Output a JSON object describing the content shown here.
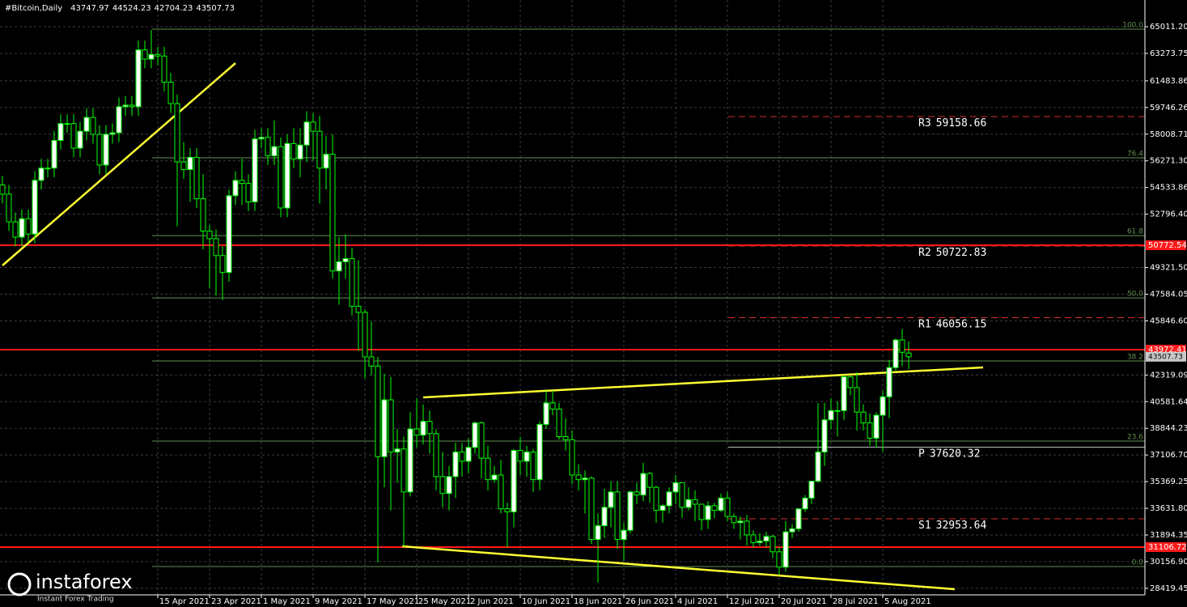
{
  "chart_data": {
    "type": "candlestick",
    "title": "#Bitcoin,Daily",
    "categories": [
      null,
      null,
      null,
      null,
      null,
      null,
      null,
      null,
      null,
      null,
      null,
      null,
      null,
      null,
      null,
      null,
      null,
      null,
      null,
      null,
      null,
      null,
      null,
      null,
      "15 Apr 2021",
      null,
      null,
      null,
      null,
      null,
      null,
      null,
      "23 Apr 2021",
      null,
      null,
      null,
      null,
      null,
      null,
      null,
      "1 May 2021",
      null,
      null,
      null,
      null,
      null,
      null,
      null,
      "9 May 2021",
      null,
      null,
      null,
      null,
      null,
      null,
      null,
      "17 May 2021",
      null,
      null,
      null,
      null,
      null,
      null,
      null,
      "25 May 2021",
      null,
      null,
      null,
      null,
      null,
      null,
      null,
      "2 Jun 2021",
      null,
      null,
      null,
      null,
      null,
      null,
      null,
      "10 Jun 2021",
      null,
      null,
      null,
      null,
      null,
      null,
      null,
      "18 Jun 2021",
      null,
      null,
      null,
      null,
      null,
      null,
      null,
      "26 Jun 2021",
      null,
      null,
      null,
      null,
      null,
      null,
      null,
      "4 Jul 2021",
      null,
      null,
      null,
      null,
      null,
      null,
      null,
      "12 Jul 2021",
      null,
      null,
      null,
      null,
      null,
      null,
      null,
      "20 Jul 2021",
      null,
      null,
      null,
      null,
      null,
      null,
      null,
      "28 Jul 2021",
      null,
      null,
      null,
      null,
      null,
      null,
      null,
      "5 Aug 2021",
      null,
      null,
      null,
      null
    ],
    "open": [
      54700,
      54100,
      52300,
      51300,
      52500,
      51500,
      55000,
      55800,
      55800,
      57600,
      58700,
      58700,
      57100,
      58200,
      59100,
      58000,
      56000,
      58000,
      58100,
      59800,
      59900,
      59800,
      63500,
      62900,
      63200,
      63100,
      61400,
      60000,
      56200,
      55700,
      56500,
      53800,
      51700,
      51200,
      50100,
      49000,
      54000,
      55000,
      54800,
      53600,
      57700,
      57800,
      56600,
      57200,
      53200,
      57400,
      56400,
      57300,
      58800,
      58200,
      55800,
      56700,
      49100,
      49700,
      49900,
      46800,
      46400,
      43500,
      42900,
      37000,
      40700,
      37300,
      37500,
      34700,
      38800,
      38400,
      39300,
      38500,
      35700,
      34600,
      35700,
      37300,
      36700,
      37600,
      39200,
      36900,
      35500,
      35800,
      33600,
      33400,
      37400,
      36700,
      37300,
      35500,
      39100,
      40500,
      40100,
      38300,
      38100,
      35800,
      35500,
      35600,
      31600,
      32500,
      33700,
      34700,
      31600,
      32200,
      34700,
      34500,
      35900,
      35000,
      33500,
      33800,
      34700,
      35300,
      33700,
      34200,
      33900,
      32900,
      33800,
      33500,
      34300,
      33100,
      32700,
      32800,
      31900,
      31400,
      31500,
      31800,
      30800,
      29800,
      32100,
      32300,
      33600,
      34300,
      35400,
      37300,
      39400,
      40000,
      40000,
      42200,
      41500,
      39900,
      39200,
      38200,
      39700,
      40900,
      42800,
      44600,
      43747.97
    ],
    "high": [
      55300,
      54700,
      52900,
      53100,
      53100,
      55600,
      56400,
      56400,
      58200,
      59300,
      59300,
      59300,
      58800,
      59700,
      59700,
      58600,
      58600,
      58700,
      60400,
      60500,
      60500,
      64100,
      64100,
      64800,
      63700,
      63700,
      62000,
      60600,
      57500,
      57100,
      57100,
      55400,
      52100,
      51800,
      50700,
      54400,
      55600,
      56400,
      55400,
      58300,
      58400,
      58400,
      58900,
      57800,
      58000,
      58400,
      58400,
      59500,
      59400,
      59200,
      57900,
      58000,
      51300,
      51500,
      50600,
      49800,
      46600,
      45800,
      43500,
      42400,
      42200,
      38800,
      38300,
      39900,
      40800,
      40400,
      40000,
      38800,
      37300,
      36400,
      37900,
      37900,
      38200,
      39300,
      39300,
      37700,
      36400,
      36800,
      34000,
      37500,
      38300,
      37700,
      37500,
      39300,
      41300,
      41300,
      40500,
      39500,
      38700,
      36500,
      36100,
      35700,
      33300,
      34900,
      35400,
      35400,
      32700,
      34800,
      35300,
      36600,
      36000,
      35100,
      33900,
      35000,
      35800,
      35300,
      35000,
      34800,
      33900,
      34100,
      34000,
      34600,
      34700,
      33300,
      33100,
      33200,
      32200,
      32000,
      32100,
      31900,
      31100,
      32800,
      32600,
      33600,
      34500,
      35400,
      40500,
      40500,
      40800,
      40600,
      42300,
      42300,
      42500,
      40400,
      39800,
      39900,
      41300,
      43300,
      44700,
      45300,
      44524.23
    ],
    "low": [
      53500,
      51700,
      50700,
      50700,
      50900,
      50900,
      54400,
      55200,
      55200,
      57000,
      58100,
      56500,
      56500,
      57600,
      57400,
      55400,
      55400,
      57400,
      57500,
      59200,
      59200,
      59200,
      62300,
      62300,
      62500,
      60800,
      59400,
      52000,
      55100,
      53600,
      53200,
      50500,
      48000,
      47500,
      47200,
      48400,
      53400,
      53400,
      53000,
      53000,
      57100,
      56000,
      56000,
      52600,
      52600,
      55800,
      55200,
      56200,
      56300,
      53500,
      54400,
      48600,
      46900,
      48600,
      46200,
      43900,
      42100,
      42300,
      30100,
      35000,
      33500,
      35300,
      31100,
      34400,
      37600,
      37800,
      37200,
      34800,
      33700,
      33500,
      34300,
      35700,
      35900,
      37200,
      35600,
      34800,
      35300,
      33300,
      31100,
      32400,
      35800,
      35700,
      34700,
      34800,
      38800,
      39700,
      38100,
      37400,
      35200,
      34800,
      33300,
      31300,
      28800,
      31700,
      32400,
      31000,
      30200,
      32000,
      33900,
      34100,
      34000,
      32700,
      32700,
      33300,
      33900,
      33000,
      33500,
      32800,
      32200,
      32300,
      33000,
      33400,
      32800,
      32300,
      31600,
      31200,
      31100,
      31200,
      31100,
      30400,
      29300,
      29500,
      31700,
      32100,
      33400,
      33900,
      35300,
      36400,
      38800,
      38300,
      39400,
      41000,
      38700,
      38700,
      37700,
      37600,
      37300,
      39500,
      42600,
      42900,
      42704.23
    ],
    "close": [
      54100,
      52300,
      51300,
      52500,
      51500,
      55000,
      55800,
      55800,
      57600,
      58700,
      58700,
      57100,
      58200,
      59100,
      58000,
      56000,
      58000,
      58100,
      59800,
      59900,
      59800,
      63500,
      62900,
      63200,
      63100,
      61400,
      60000,
      56200,
      55700,
      56500,
      53800,
      51700,
      51200,
      50100,
      49000,
      54000,
      55000,
      54800,
      53600,
      57700,
      57800,
      56600,
      57200,
      53200,
      57400,
      56400,
      57300,
      58800,
      58200,
      55800,
      56700,
      49100,
      49700,
      49900,
      46800,
      46400,
      43500,
      42900,
      37000,
      40700,
      37300,
      37500,
      34700,
      38800,
      38400,
      39300,
      38500,
      35700,
      34600,
      35700,
      37300,
      36700,
      37600,
      39200,
      36900,
      35500,
      35800,
      33600,
      33400,
      37400,
      36700,
      37300,
      35500,
      39100,
      40500,
      40100,
      38300,
      38100,
      35800,
      35500,
      35600,
      31600,
      32500,
      33700,
      34700,
      31600,
      32200,
      34700,
      34500,
      35900,
      35000,
      33500,
      33800,
      34700,
      35300,
      33700,
      34200,
      33900,
      32900,
      33800,
      33500,
      34300,
      33100,
      32700,
      32800,
      31900,
      31400,
      31500,
      31800,
      30800,
      29800,
      32100,
      32300,
      33600,
      34300,
      35400,
      37300,
      39400,
      40000,
      40000,
      42200,
      41500,
      39900,
      39200,
      38200,
      39700,
      40900,
      42800,
      44600,
      43800,
      43507.73
    ],
    "up_color": "#ffffff",
    "down_color": "#000000",
    "wick_color": "#00ff00",
    "ylim": [
      27994,
      66751
    ],
    "yticks": [
      {
        "value": 65011.2,
        "label": "65011.20"
      },
      63273.75,
      61483.86,
      59746.26,
      58008.71,
      {
        "value": 56271.3,
        "label": "56271.30"
      },
      54533.86,
      {
        "value": 52796.4,
        "label": "52796.40"
      },
      {
        "value": 49321.5,
        "label": "49321.50"
      },
      47584.05,
      {
        "value": 45846.6,
        "label": "45846.60"
      },
      42319.09,
      40581.64,
      38844.23,
      {
        "value": 37106.7,
        "label": "37106.70"
      },
      35369.25,
      {
        "value": 33631.8,
        "label": "33631.80"
      },
      31894.35,
      {
        "value": 30156.9,
        "label": "30156.90"
      },
      28419.45
    ],
    "grid": true,
    "levels": [
      50772.54,
      43972.41,
      31106.72
    ],
    "level_color": "#ff1a1a",
    "pivots": [
      {
        "name": "R3",
        "value": 59158.66
      },
      {
        "name": "R2",
        "value": 50722.83
      },
      {
        "name": "R1",
        "value": 46056.15
      },
      {
        "name": "P",
        "value": 37620.32
      },
      {
        "name": "S1",
        "value": 32953.64
      }
    ],
    "fibonacci": [
      {
        "label": "100.0",
        "price": 64850
      },
      {
        "label": "76.4",
        "price": 56470
      },
      {
        "label": "61.8",
        "price": 51400
      },
      {
        "label": "50.0",
        "price": 47340
      },
      {
        "label": "38.2",
        "price": 43230
      },
      {
        "label": "23.6",
        "price": 38010
      },
      {
        "label": "0.0",
        "price": 29840
      }
    ],
    "fib_color": "#5f8f4f"
  },
  "logo": {
    "name": "instaforex",
    "tagline": "Instant Forex Trading"
  }
}
